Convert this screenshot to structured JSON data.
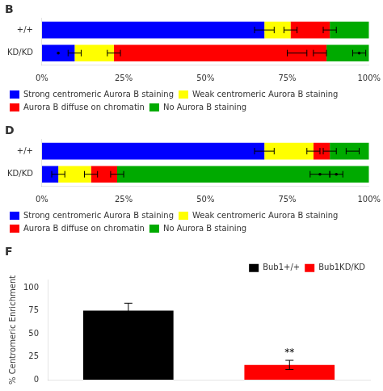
{
  "chart_data": [
    {
      "type": "bar",
      "title": "B",
      "orientation": "horizontal",
      "stacked": true,
      "categories": [
        "+/+",
        "KD/KD"
      ],
      "series": [
        {
          "name": "Strong centromeric Aurora B staining",
          "color": "#0000ff",
          "values": [
            68,
            10
          ]
        },
        {
          "name": "Weak centromeric Aurora B staining",
          "color": "#ffff00",
          "values": [
            8,
            12
          ]
        },
        {
          "name": "Aurora B diffuse on chromatin",
          "color": "#ff0000",
          "values": [
            12,
            65
          ]
        },
        {
          "name": "No Aurora B staining",
          "color": "#00aa00",
          "values": [
            12,
            13
          ]
        }
      ],
      "xlim": [
        0,
        100
      ],
      "xticks": [
        {
          "value": 0,
          "label": "0%"
        },
        {
          "value": 25,
          "label": "25%"
        },
        {
          "value": 50,
          "label": "50%"
        },
        {
          "value": 75,
          "label": "75%"
        },
        {
          "value": 100,
          "label": "100%"
        }
      ],
      "error_bars": [
        {
          "category": "+/+",
          "value": 68,
          "error": 3
        },
        {
          "category": "+/+",
          "value": 76,
          "error": 2
        },
        {
          "category": "+/+",
          "value": 88,
          "error": 2
        },
        {
          "category": "KD/KD",
          "value": 10,
          "error": 2
        },
        {
          "category": "KD/KD",
          "value": 22,
          "error": 2
        },
        {
          "category": "KD/KD",
          "value": 78,
          "error": 3
        },
        {
          "category": "KD/KD",
          "value": 85,
          "error": 2
        },
        {
          "category": "KD/KD",
          "value": 97,
          "error": 2
        }
      ],
      "points": [
        {
          "category": "KD/KD",
          "value": 5
        },
        {
          "category": "KD/KD",
          "value": 97
        }
      ],
      "grid": false,
      "legend": "lower left"
    },
    {
      "type": "bar",
      "title": "D",
      "orientation": "horizontal",
      "stacked": true,
      "categories": [
        "+/+",
        "KD/KD"
      ],
      "series": [
        {
          "name": "Strong centromeric Aurora B staining",
          "color": "#0000ff",
          "values": [
            68,
            5
          ]
        },
        {
          "name": "Weak centromeric Aurora B staining",
          "color": "#ffff00",
          "values": [
            15,
            10
          ]
        },
        {
          "name": "Aurora B diffuse on chromatin",
          "color": "#ff0000",
          "values": [
            5,
            8
          ]
        },
        {
          "name": "No Aurora B staining",
          "color": "#00aa00",
          "values": [
            12,
            77
          ]
        }
      ],
      "xlim": [
        0,
        100
      ],
      "xticks": [
        {
          "value": 0,
          "label": "0%"
        },
        {
          "value": 25,
          "label": "25%"
        },
        {
          "value": 50,
          "label": "50%"
        },
        {
          "value": 75,
          "label": "75%"
        },
        {
          "value": 100,
          "label": "100%"
        }
      ],
      "error_bars": [
        {
          "category": "+/+",
          "value": 68,
          "error": 3
        },
        {
          "category": "+/+",
          "value": 83,
          "error": 2
        },
        {
          "category": "+/+",
          "value": 88,
          "error": 2
        },
        {
          "category": "+/+",
          "value": 95,
          "error": 2
        },
        {
          "category": "KD/KD",
          "value": 5,
          "error": 2
        },
        {
          "category": "KD/KD",
          "value": 15,
          "error": 2
        },
        {
          "category": "KD/KD",
          "value": 23,
          "error": 2
        },
        {
          "category": "KD/KD",
          "value": 85,
          "error": 3
        },
        {
          "category": "KD/KD",
          "value": 90,
          "error": 2
        }
      ],
      "points": [
        {
          "category": "KD/KD",
          "value": 85
        },
        {
          "category": "KD/KD",
          "value": 90
        }
      ],
      "grid": false,
      "legend": "lower left"
    },
    {
      "type": "bar",
      "title": "F",
      "categories": [
        null,
        null
      ],
      "series": [
        {
          "name": "Bub1+/+",
          "color": "#000000",
          "values": [
            75,
            null
          ],
          "errors": [
            8,
            null
          ]
        },
        {
          "name": "Bub1KD/KD",
          "color": "#ff0000",
          "values": [
            null,
            16
          ],
          "errors": [
            null,
            5
          ],
          "annotation": "**"
        }
      ],
      "ylabel": "% Centromeric Enrichment",
      "ylim": [
        0,
        108
      ],
      "yticks": [
        0,
        25,
        50,
        75,
        100
      ],
      "grid": false,
      "legend": "upper right",
      "tick_labels": "y"
    }
  ]
}
